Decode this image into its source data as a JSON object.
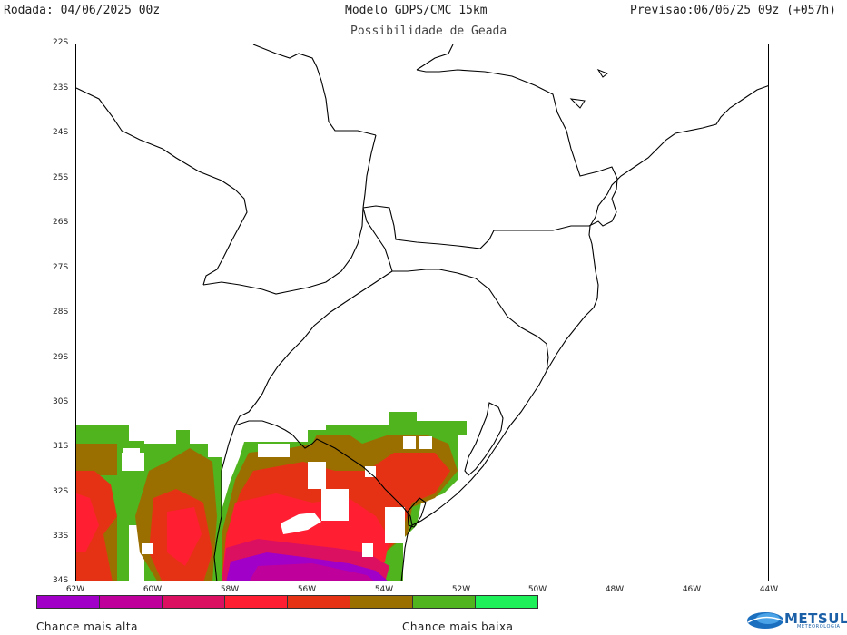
{
  "header": {
    "run": "Rodada: 04/06/2025 00z",
    "model": "Modelo GDPS/CMC 15km",
    "forecast": "Previsao:06/06/25 09z (+057h)"
  },
  "subtitle": "Possibilidade de Geada",
  "axes": {
    "lat_labels": [
      "22S",
      "23S",
      "24S",
      "25S",
      "26S",
      "27S",
      "28S",
      "29S",
      "30S",
      "31S",
      "32S",
      "33S",
      "34S"
    ],
    "lon_labels": [
      "62W",
      "60W",
      "58W",
      "56W",
      "54W",
      "52W",
      "50W",
      "48W",
      "46W",
      "44W"
    ]
  },
  "legend": {
    "colors": [
      "#a000c8",
      "#c0009a",
      "#dc1060",
      "#ff1e32",
      "#e63214",
      "#9b6e00",
      "#50b41e",
      "#1ef05a"
    ],
    "high_label": "Chance mais alta",
    "low_label": "Chance mais baixa"
  },
  "logo": {
    "text": "METSUL",
    "subtext": "METEOROLOGIA"
  }
}
